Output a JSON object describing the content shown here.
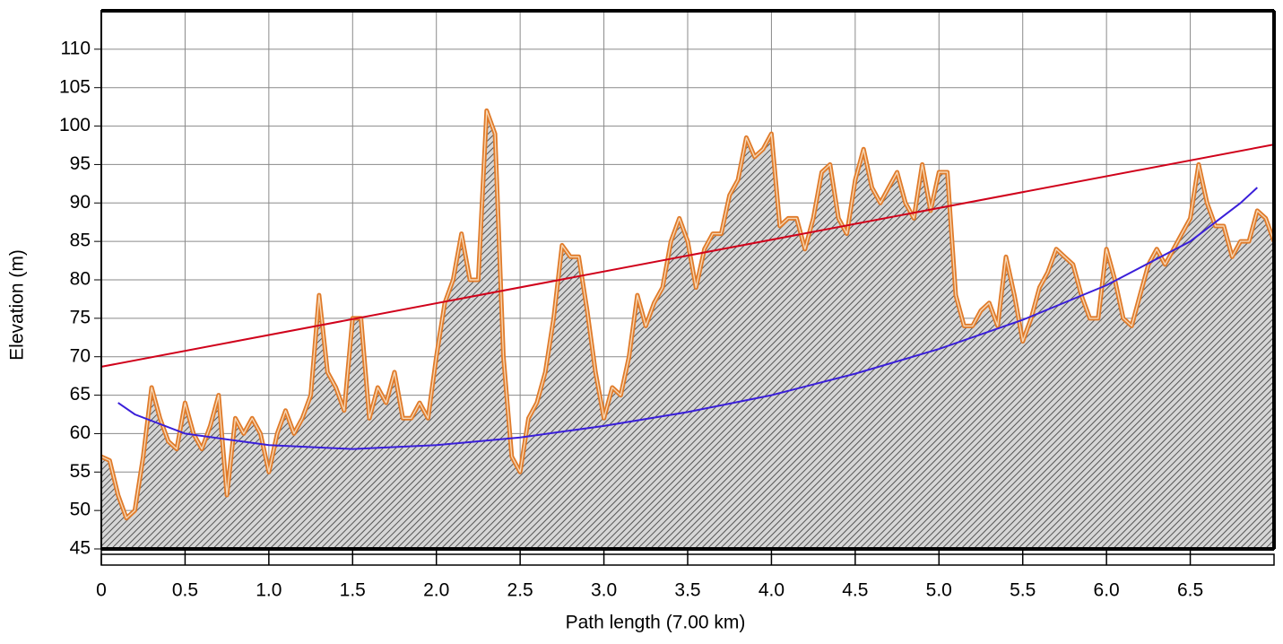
{
  "chart_data": {
    "type": "line",
    "xlabel": "Path length (7.00 km)",
    "ylabel": "Elevation (m)",
    "xlim": [
      0,
      7
    ],
    "ylim": [
      45,
      115
    ],
    "xticks": [
      0,
      0.5,
      {
        "value": 1,
        "label": "1.0"
      },
      1.5,
      {
        "value": 2,
        "label": "2.0"
      },
      2.5,
      {
        "value": 3,
        "label": "3.0"
      },
      3.5,
      {
        "value": 4,
        "label": "4.0"
      },
      4.5,
      {
        "value": 5,
        "label": "5.0"
      },
      5.5,
      {
        "value": 6,
        "label": "6.0"
      },
      6.5
    ],
    "yticks": [
      45,
      50,
      55,
      60,
      65,
      70,
      75,
      80,
      85,
      90,
      95,
      100,
      105,
      110
    ],
    "grid": true,
    "series": [
      {
        "color": "#e07b2a",
        "fill": true,
        "x": [
          0,
          0.05,
          0.1,
          0.15,
          0.2,
          0.25,
          0.3,
          0.35,
          0.4,
          0.45,
          0.5,
          0.55,
          0.6,
          0.65,
          0.7,
          0.75,
          0.8,
          0.85,
          0.9,
          0.95,
          1,
          1.05,
          1.1,
          1.15,
          1.2,
          1.25,
          1.3,
          1.35,
          1.4,
          1.45,
          1.5,
          1.55,
          1.6,
          1.65,
          1.7,
          1.75,
          1.8,
          1.85,
          1.9,
          1.95,
          2,
          2.05,
          2.1,
          2.15,
          2.2,
          2.25,
          2.3,
          2.35,
          2.4,
          2.45,
          2.5,
          2.55,
          2.6,
          2.65,
          2.7,
          2.75,
          2.8,
          2.85,
          2.9,
          2.95,
          3,
          3.05,
          3.1,
          3.15,
          3.2,
          3.25,
          3.3,
          3.35,
          3.4,
          3.45,
          3.5,
          3.55,
          3.6,
          3.65,
          3.7,
          3.75,
          3.8,
          3.85,
          3.9,
          3.95,
          4,
          4.05,
          4.1,
          4.15,
          4.2,
          4.25,
          4.3,
          4.35,
          4.4,
          4.45,
          4.5,
          4.55,
          4.6,
          4.65,
          4.7,
          4.75,
          4.8,
          4.85,
          4.9,
          4.95,
          5,
          5.05,
          5.1,
          5.15,
          5.2,
          5.25,
          5.3,
          5.35,
          5.4,
          5.45,
          5.5,
          5.55,
          5.6,
          5.65,
          5.7,
          5.75,
          5.8,
          5.85,
          5.9,
          5.95,
          6,
          6.05,
          6.1,
          6.15,
          6.2,
          6.25,
          6.3,
          6.35,
          6.4,
          6.45,
          6.5,
          6.55,
          6.6,
          6.65,
          6.7,
          6.75,
          6.8,
          6.85,
          6.9,
          6.95,
          7
        ],
        "values": [
          57,
          56.5,
          52,
          49,
          50,
          57,
          66,
          62,
          59,
          58,
          64,
          60,
          58,
          61,
          65,
          52,
          62,
          60,
          62,
          60,
          55,
          60,
          63,
          60,
          62,
          65,
          78,
          68,
          66,
          63,
          75,
          75,
          62,
          66,
          64,
          68,
          62,
          62,
          64,
          62,
          70,
          77,
          80,
          86,
          80,
          80,
          102,
          99,
          70,
          57,
          55,
          62,
          64,
          68,
          75,
          84.5,
          83,
          83,
          76,
          68,
          62,
          66,
          65,
          70,
          78,
          74,
          77,
          79,
          85,
          88,
          85,
          79,
          84,
          86,
          86,
          91,
          93,
          98.5,
          96,
          97,
          99,
          87,
          88,
          88,
          84,
          88,
          94,
          95,
          88,
          86,
          93,
          97,
          92,
          90,
          92,
          94,
          90,
          88,
          95,
          89,
          94,
          94,
          78,
          74,
          74,
          76,
          77,
          74,
          83,
          78,
          72,
          75,
          79,
          81,
          84,
          83,
          82,
          78,
          75,
          75,
          84,
          80,
          75,
          74,
          78,
          82,
          84,
          82,
          84,
          86,
          88,
          95,
          90,
          87,
          87,
          83,
          85,
          85,
          89,
          88,
          85
        ]
      },
      {
        "color": "#d0021b",
        "x": [
          0,
          7
        ],
        "values": [
          68.7,
          97.6
        ]
      },
      {
        "color": "#3a1fd9",
        "x": [
          0.1,
          0.2,
          0.5,
          1,
          1.5,
          2,
          2.5,
          3,
          3.5,
          4,
          4.5,
          5,
          5.5,
          6,
          6.5,
          6.8,
          6.9
        ],
        "values": [
          64,
          62.5,
          60,
          58.5,
          58,
          58.5,
          59.5,
          61,
          62.8,
          65,
          67.8,
          71,
          74.8,
          79.3,
          85,
          90,
          92
        ]
      }
    ]
  }
}
